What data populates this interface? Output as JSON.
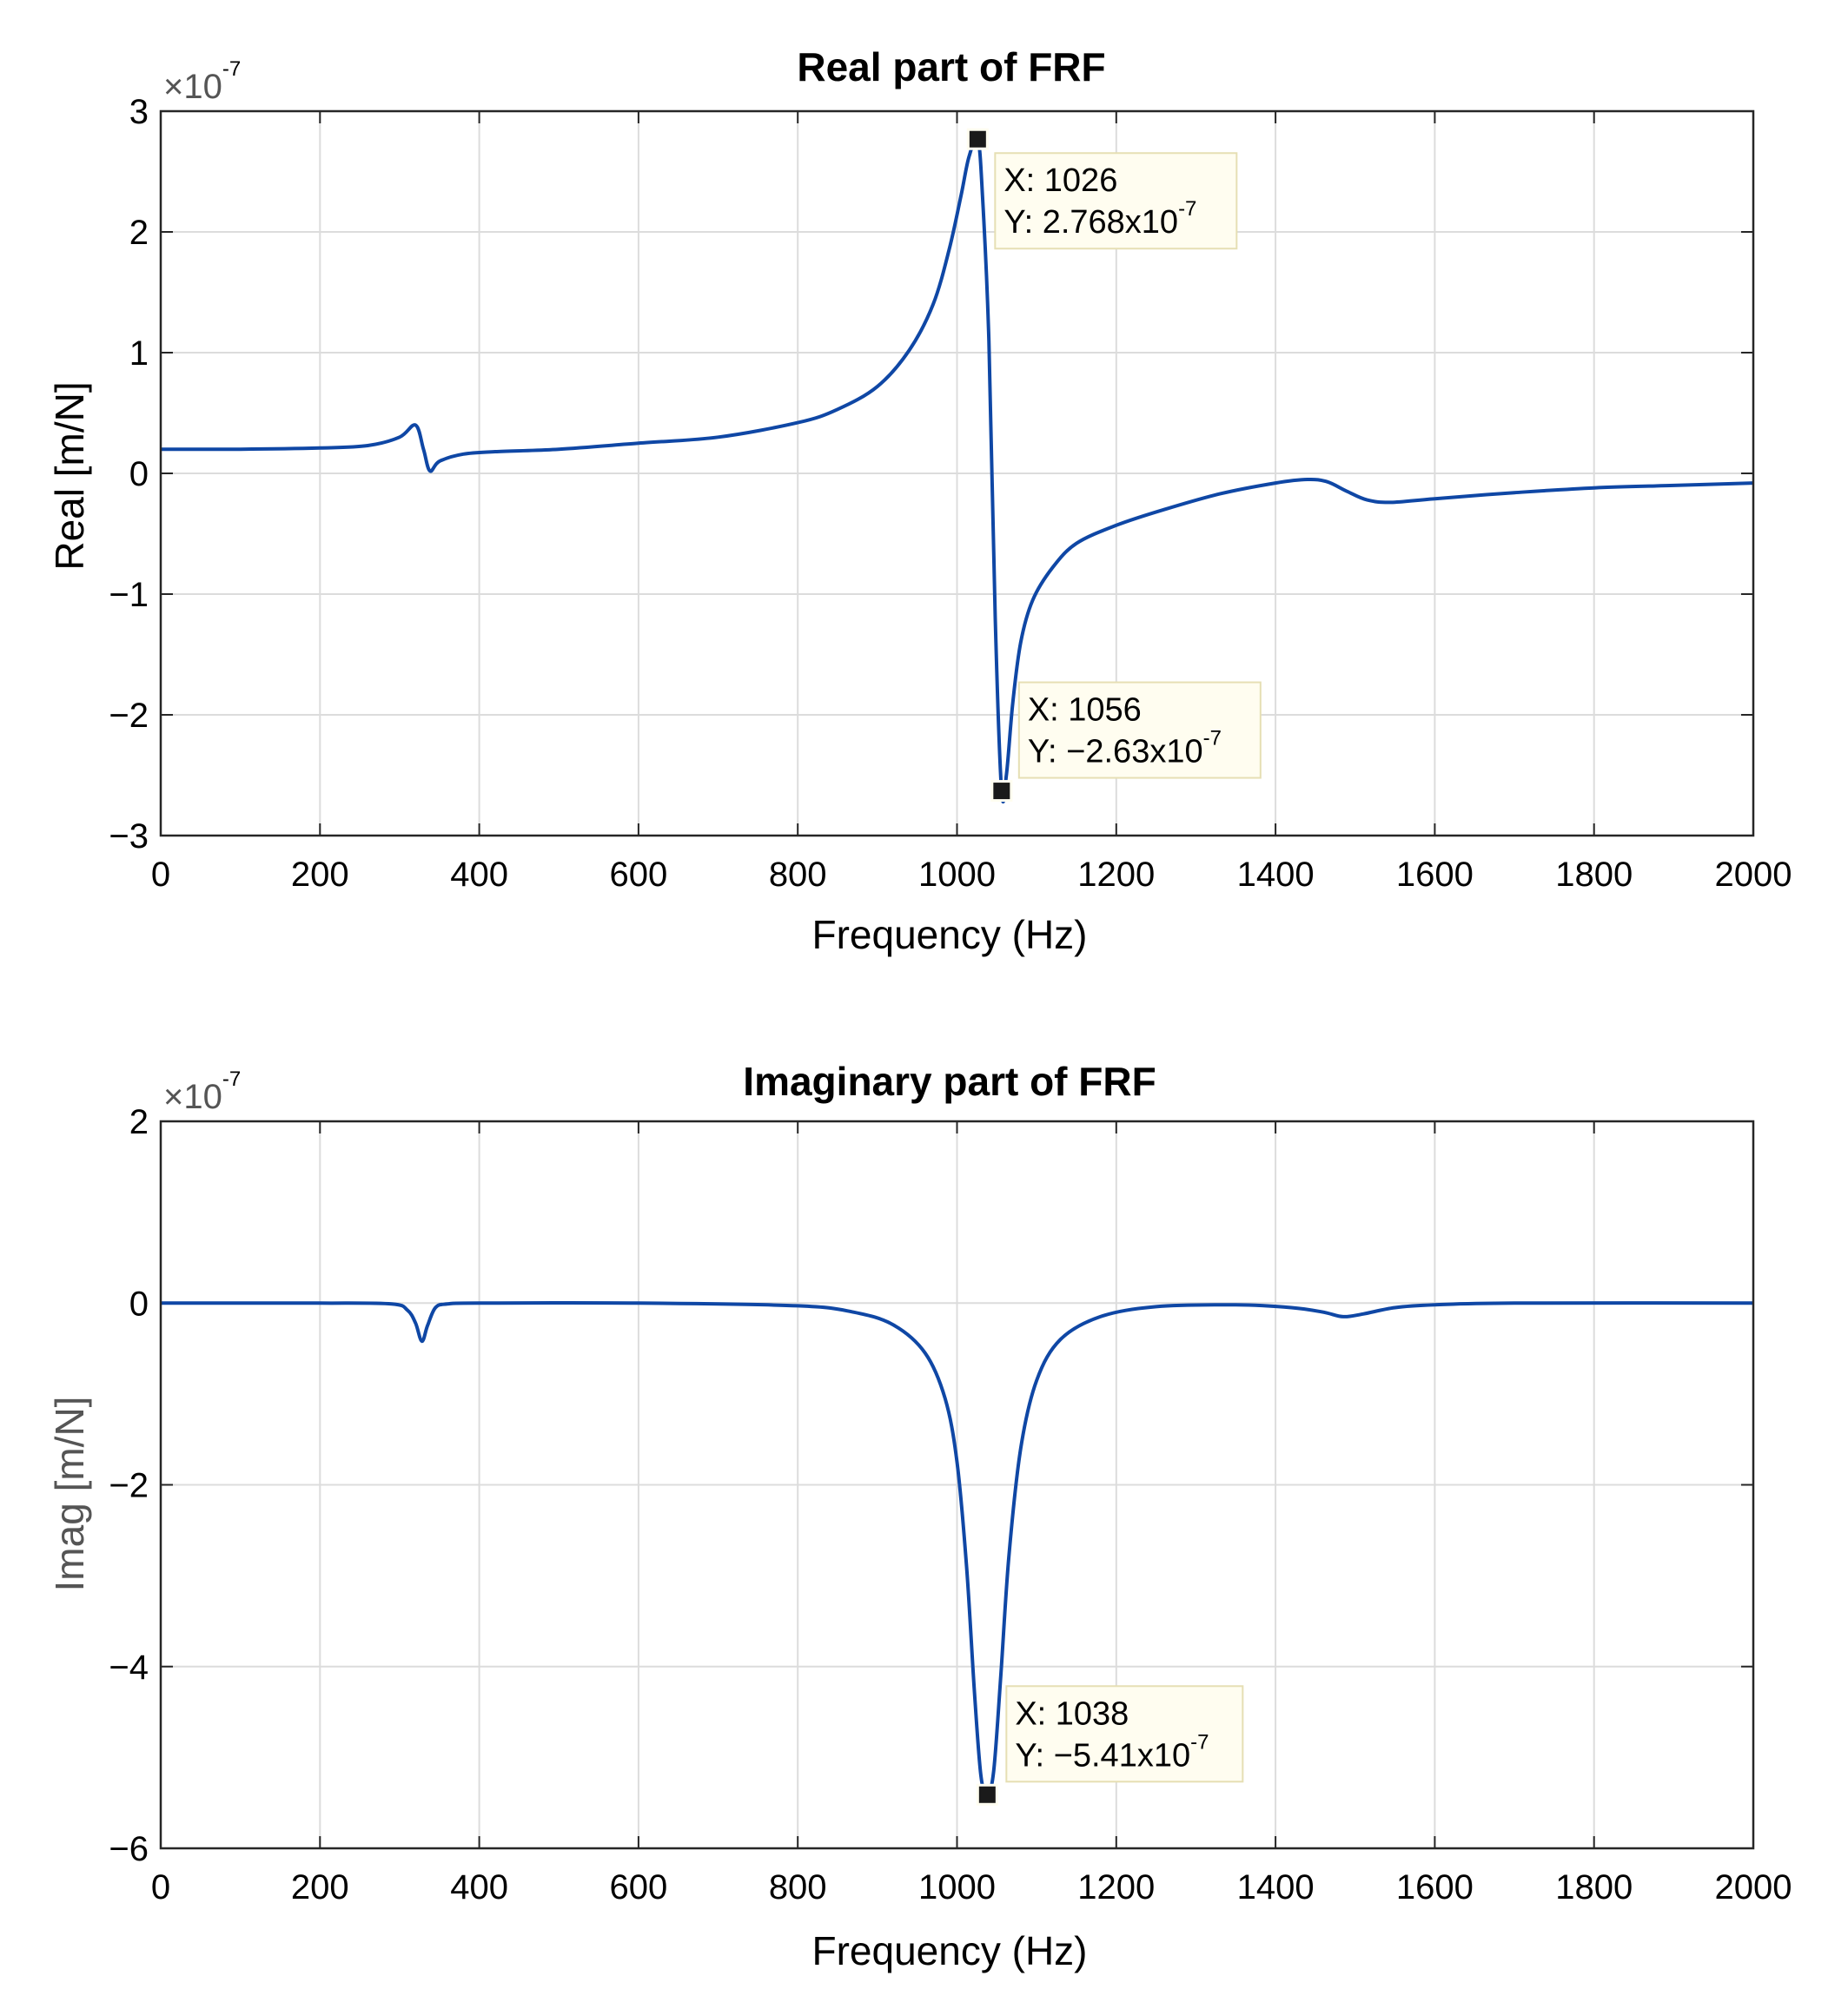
{
  "chart_data": [
    {
      "type": "line",
      "title": "Real part of FRF",
      "xlabel": "Frequency (Hz)",
      "ylabel": "Real [m/N]",
      "exponent_label": "×10",
      "exponent_power": "-7",
      "xlim": [
        0,
        2000
      ],
      "ylim": [
        -3,
        3
      ],
      "xticks": [
        0,
        200,
        400,
        600,
        800,
        1000,
        1200,
        1400,
        1600,
        1800,
        2000
      ],
      "yticks": [
        -3,
        -2,
        -1,
        0,
        1,
        2,
        3
      ],
      "ytick_labels": [
        "−3",
        "−2",
        "−1",
        "0",
        "1",
        "2",
        "3"
      ],
      "grid": true,
      "line_color": "#0f47a5",
      "series": [
        {
          "name": "Real",
          "x": [
            0,
            100,
            200,
            260,
            300,
            320,
            330,
            338,
            350,
            380,
            420,
            500,
            600,
            700,
            800,
            850,
            900,
            940,
            970,
            990,
            1005,
            1015,
            1026,
            1032,
            1040,
            1048,
            1056,
            1062,
            1070,
            1080,
            1095,
            1120,
            1150,
            1200,
            1260,
            1330,
            1400,
            1440,
            1465,
            1490,
            1515,
            1545,
            1600,
            1700,
            1800,
            1900,
            2000
          ],
          "y": [
            0.2,
            0.2,
            0.21,
            0.23,
            0.3,
            0.4,
            0.2,
            0.02,
            0.1,
            0.16,
            0.18,
            0.2,
            0.25,
            0.3,
            0.42,
            0.53,
            0.72,
            1.02,
            1.4,
            1.85,
            2.3,
            2.62,
            2.768,
            2.3,
            1.1,
            -1.2,
            -2.63,
            -2.5,
            -1.9,
            -1.4,
            -1.05,
            -0.78,
            -0.58,
            -0.43,
            -0.3,
            -0.17,
            -0.08,
            -0.05,
            -0.07,
            -0.15,
            -0.22,
            -0.24,
            -0.21,
            -0.16,
            -0.12,
            -0.1,
            -0.08
          ]
        }
      ],
      "datatips": [
        {
          "x": 1026,
          "y": 2.768,
          "x_text": "X: 1026",
          "y_text": "Y: 2.768x10",
          "y_power": "-7"
        },
        {
          "x": 1056,
          "y": -2.63,
          "x_text": "X: 1056",
          "y_text": "Y: −2.63x10",
          "y_power": "-7"
        }
      ]
    },
    {
      "type": "line",
      "title": "Imaginary part of FRF",
      "xlabel": "Frequency (Hz)",
      "ylabel": "Imag [m/N]",
      "exponent_label": "×10",
      "exponent_power": "-7",
      "xlim": [
        0,
        2000
      ],
      "ylim": [
        -6,
        2
      ],
      "xticks": [
        0,
        200,
        400,
        600,
        800,
        1000,
        1200,
        1400,
        1600,
        1800,
        2000
      ],
      "yticks": [
        -6,
        -4,
        -2,
        0,
        2
      ],
      "ytick_labels": [
        "−6",
        "−4",
        "−2",
        "0",
        "2"
      ],
      "grid": true,
      "line_color": "#0f47a5",
      "series": [
        {
          "name": "Imag",
          "x": [
            0,
            200,
            290,
            310,
            320,
            328,
            335,
            345,
            360,
            400,
            600,
            800,
            870,
            920,
            960,
            985,
            1000,
            1012,
            1022,
            1030,
            1038,
            1046,
            1055,
            1065,
            1080,
            1100,
            1130,
            1180,
            1250,
            1350,
            1420,
            1460,
            1485,
            1510,
            1550,
            1600,
            1700,
            2000
          ],
          "y": [
            0,
            0,
            -0.01,
            -0.08,
            -0.22,
            -0.42,
            -0.25,
            -0.05,
            -0.01,
            0,
            0,
            -0.03,
            -0.1,
            -0.24,
            -0.55,
            -1.05,
            -1.75,
            -2.9,
            -4.3,
            -5.2,
            -5.41,
            -5.15,
            -4.1,
            -2.8,
            -1.6,
            -0.85,
            -0.4,
            -0.15,
            -0.04,
            -0.02,
            -0.05,
            -0.1,
            -0.15,
            -0.12,
            -0.05,
            -0.02,
            0,
            0
          ]
        }
      ],
      "datatips": [
        {
          "x": 1038,
          "y": -5.41,
          "x_text": "X: 1038",
          "y_text": "Y: −5.41x10",
          "y_power": "-7"
        }
      ]
    }
  ]
}
